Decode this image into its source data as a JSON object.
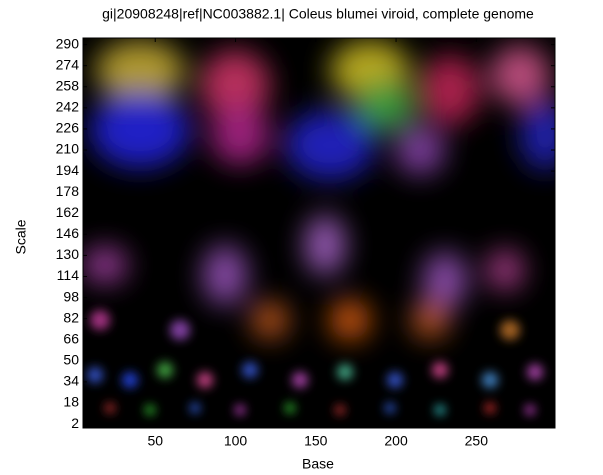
{
  "chart_data": {
    "type": "scalogram",
    "title": "gi|20908248|ref|NC003882.1| Coleus blumei viroid, complete genome",
    "x_label": "Base",
    "y_label": "Scale",
    "xlim": [
      5,
      299
    ],
    "xticks": [
      50,
      100,
      150,
      200,
      250
    ],
    "ylim": [
      -1,
      295
    ],
    "yticks": [
      2,
      18,
      34,
      50,
      66,
      82,
      98,
      114,
      130,
      146,
      162,
      178,
      194,
      210,
      226,
      242,
      258,
      274,
      290
    ]
  }
}
